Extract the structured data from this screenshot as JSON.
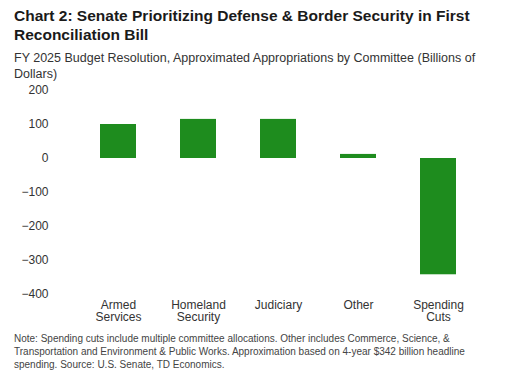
{
  "chart_data": {
    "type": "bar",
    "title": "Chart 2: Senate Prioritizing Defense & Border Security in First Reconciliation Bill",
    "subtitle": "FY 2025 Budget Resolution, Approximated Appropriations by Committee (Billions of Dollars)",
    "note": "Note: Spending cuts include multiple committee allocations. Other includes Commerce, Science, & Transportation and Environment & Public Works. Approximation based on 4-year $342 billion headline spending. Source: U.S. Senate, TD Economics.",
    "categories": [
      "Armed Services",
      "Homeland Security",
      "Judiciary",
      "Other",
      "Spending Cuts"
    ],
    "values": [
      100,
      115,
      115,
      12,
      -342
    ],
    "color": "#1e8c1e",
    "ylim": [
      -400,
      200
    ],
    "yticks": [
      -400,
      -300,
      -200,
      -100,
      0,
      100,
      200
    ],
    "grid": false
  }
}
